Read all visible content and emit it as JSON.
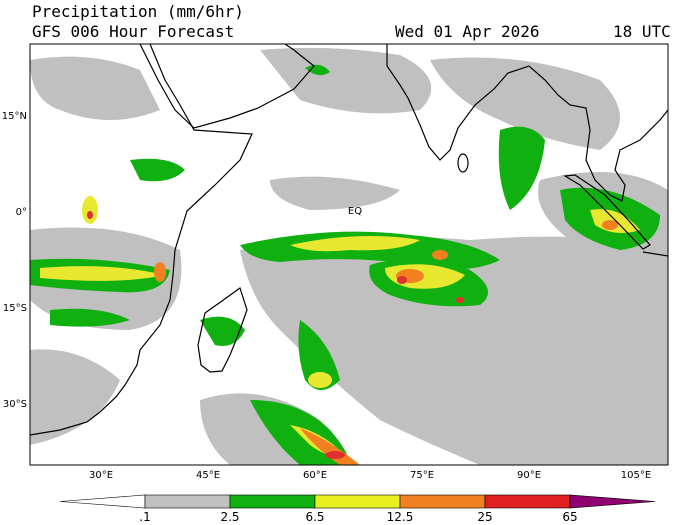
{
  "header": {
    "title": "Precipitation (mm/6hr)",
    "subtitle": "GFS 006 Hour Forecast",
    "date": "Wed 01 Apr 2026",
    "time": "18 UTC"
  },
  "map": {
    "lat_labels": [
      "15°N",
      "0°",
      "15°S",
      "30°S"
    ],
    "lon_labels": [
      "30°E",
      "45°E",
      "60°E",
      "75°E",
      "90°E",
      "105°E"
    ],
    "eq_label": "EQ"
  },
  "colorbar": {
    "labels": [
      ".1",
      "2.5",
      "6.5",
      "12.5",
      "25",
      "65"
    ]
  }
}
